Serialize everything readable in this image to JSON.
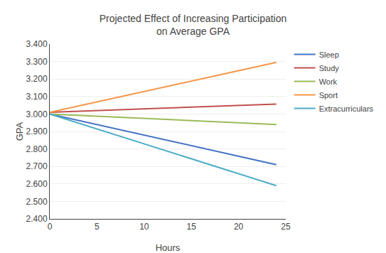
{
  "chart_data": {
    "type": "line",
    "title": "Projected Effect of Increasing Participation\non Average GPA",
    "x_label": "Hours",
    "y_label": "GPA",
    "xlim": [
      0,
      25
    ],
    "ylim": [
      2.4,
      3.4
    ],
    "xticks": [
      0,
      5,
      10,
      15,
      20,
      25
    ],
    "yticks": [
      {
        "value": 2.4,
        "label": "2.400"
      },
      {
        "value": 2.5,
        "label": "2.500"
      },
      {
        "value": 2.6,
        "label": "2.600"
      },
      {
        "value": 2.7,
        "label": "2.700"
      },
      {
        "value": 2.8,
        "label": "2.800"
      },
      {
        "value": 2.9,
        "label": "2.900"
      },
      {
        "value": 3.0,
        "label": "3.000"
      },
      {
        "value": 3.1,
        "label": "3.100"
      },
      {
        "value": 3.2,
        "label": "3.200"
      },
      {
        "value": 3.3,
        "label": "3.300"
      },
      {
        "value": 3.4,
        "label": "3.400"
      }
    ],
    "grid": "y",
    "legend": "right",
    "series": [
      {
        "name": "Sleep",
        "color": "#4472C4",
        "x": [
          0,
          24
        ],
        "values": [
          3.0,
          2.71
        ]
      },
      {
        "name": "Study",
        "color": "#C0504D",
        "x": [
          0,
          24
        ],
        "values": [
          3.01,
          3.057
        ]
      },
      {
        "name": "Work",
        "color": "#9BBB59",
        "x": [
          0,
          24
        ],
        "values": [
          3.0,
          2.94
        ]
      },
      {
        "name": "Sport",
        "color": "#F79646",
        "x": [
          0,
          24
        ],
        "values": [
          3.01,
          3.295
        ]
      },
      {
        "name": "Extracurriculars",
        "color": "#4BACC6",
        "x": [
          0,
          24
        ],
        "values": [
          3.0,
          2.59
        ]
      }
    ]
  }
}
